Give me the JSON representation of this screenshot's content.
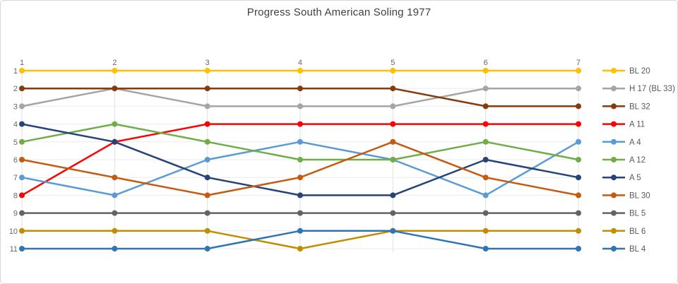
{
  "chart_data": {
    "type": "line",
    "subtype": "bump-ranking",
    "title": "Progress South American Soling 1977",
    "xlabel": "",
    "ylabel": "",
    "x_axis": {
      "position": "top",
      "ticks": [
        "1",
        "2",
        "3",
        "4",
        "5",
        "6",
        "7"
      ]
    },
    "y_axis": {
      "ticks": [
        "1",
        "2",
        "3",
        "4",
        "5",
        "6",
        "7",
        "8",
        "9",
        "10",
        "11"
      ],
      "inverted": true,
      "range": [
        1,
        11
      ]
    },
    "grid": true,
    "legend_position": "right",
    "categories": [
      1,
      2,
      3,
      4,
      5,
      6,
      7
    ],
    "series": [
      {
        "name": "BL 20",
        "color": "#FFC000",
        "values": [
          1,
          1,
          1,
          1,
          1,
          1,
          1
        ]
      },
      {
        "name": "H 17 (BL 33)",
        "color": "#A5A5A5",
        "values": [
          3,
          2,
          3,
          3,
          3,
          2,
          2
        ]
      },
      {
        "name": "BL 32",
        "color": "#843C0C",
        "values": [
          2,
          2,
          2,
          2,
          2,
          3,
          3
        ]
      },
      {
        "name": "A 11",
        "color": "#FF0000",
        "values": [
          8,
          5,
          4,
          4,
          4,
          4,
          4
        ]
      },
      {
        "name": "A 4",
        "color": "#5B9BD5",
        "values": [
          7,
          8,
          6,
          5,
          6,
          8,
          5
        ]
      },
      {
        "name": "A 12",
        "color": "#70AD47",
        "values": [
          5,
          4,
          5,
          6,
          6,
          5,
          6
        ]
      },
      {
        "name": "A 5",
        "color": "#264478",
        "values": [
          4,
          5,
          7,
          8,
          8,
          6,
          7
        ]
      },
      {
        "name": "BL 30",
        "color": "#C55A11",
        "values": [
          6,
          7,
          8,
          7,
          5,
          7,
          8
        ]
      },
      {
        "name": "BL 5",
        "color": "#636363",
        "values": [
          9,
          9,
          9,
          9,
          9,
          9,
          9
        ]
      },
      {
        "name": "BL 6",
        "color": "#BF8F00",
        "values": [
          10,
          10,
          10,
          11,
          10,
          10,
          10
        ]
      },
      {
        "name": "BL 4",
        "color": "#2E75B6",
        "values": [
          11,
          11,
          11,
          10,
          10,
          11,
          11
        ]
      }
    ]
  }
}
